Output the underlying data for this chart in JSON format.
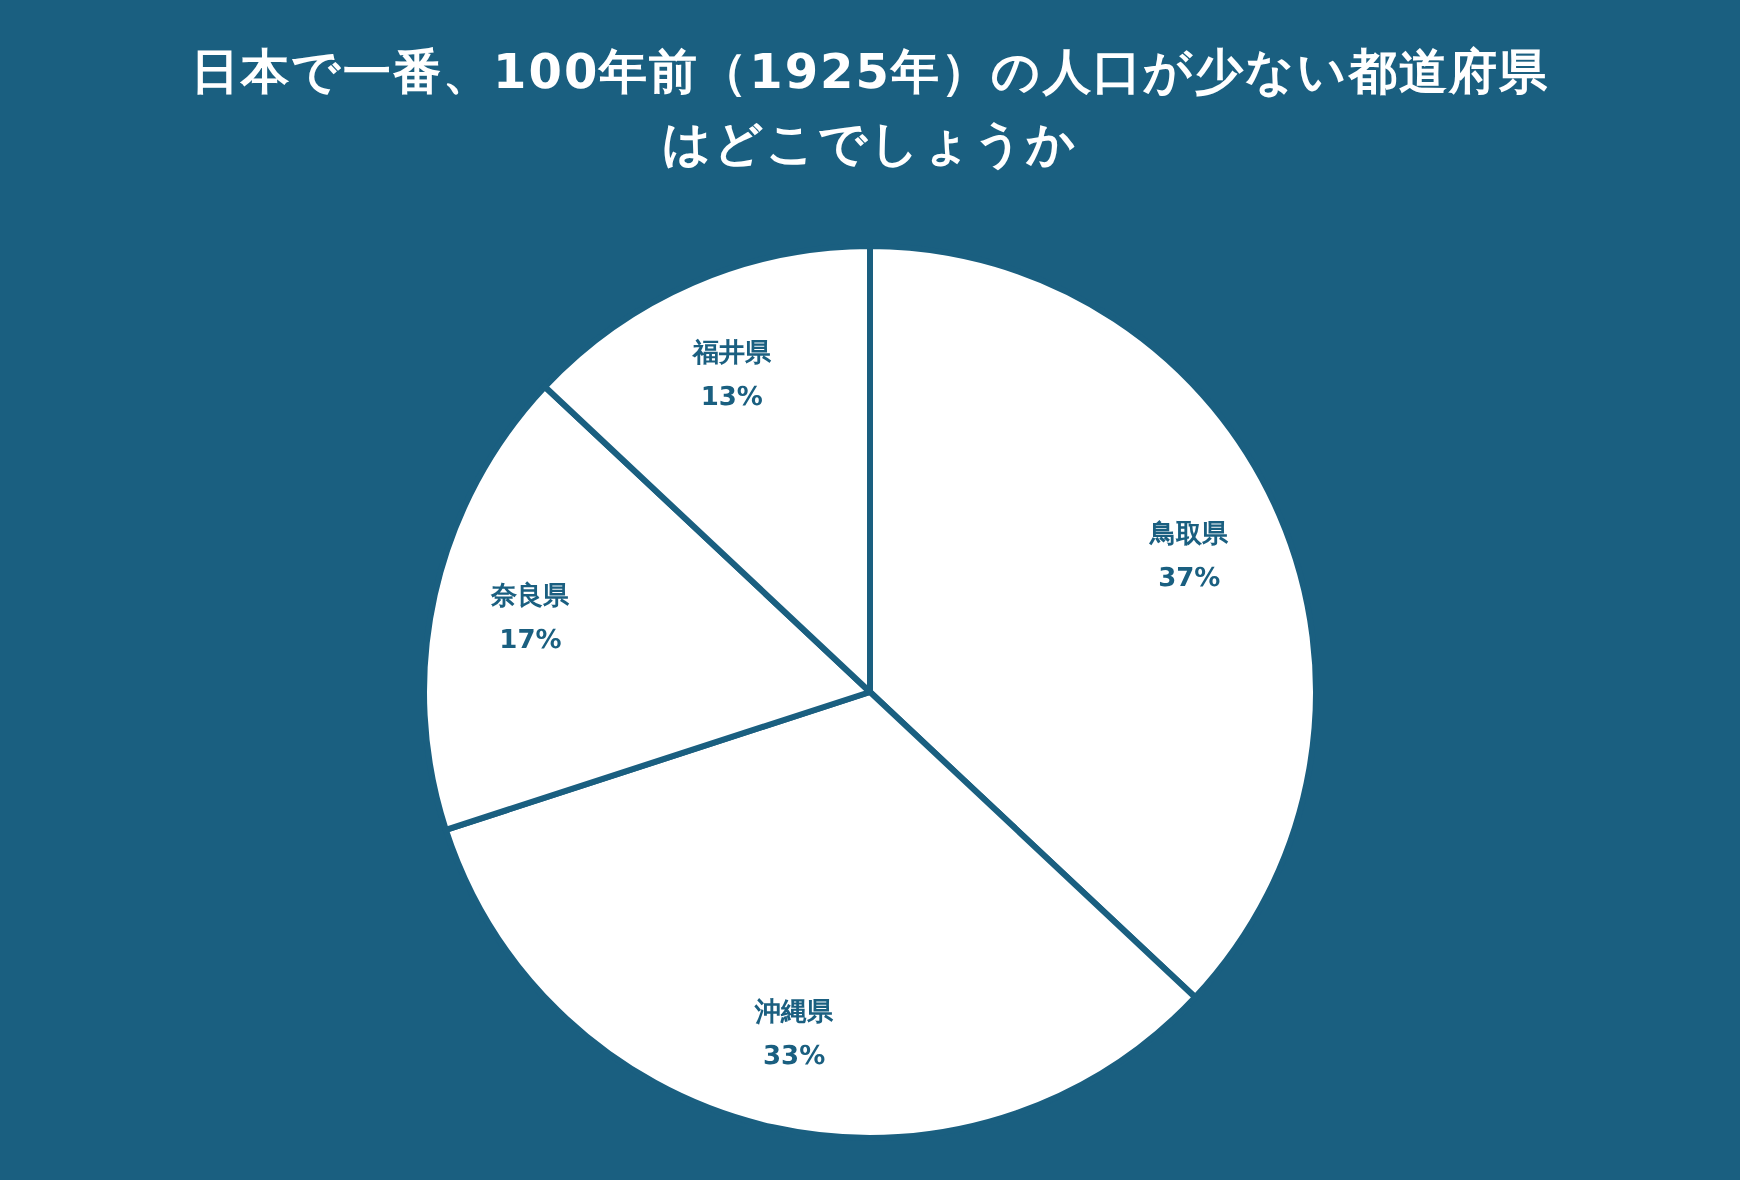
{
  "chart_data": {
    "type": "pie",
    "title": "日本で一番、100年前（1925年）の人口が少ない都道府県はどこでしょうか",
    "categories": [
      "鳥取県",
      "沖縄県",
      "奈良県",
      "福井県"
    ],
    "values": [
      37,
      33,
      17,
      13
    ],
    "value_labels": [
      "37%",
      "33%",
      "17%",
      "13%"
    ],
    "colors": [
      "#ffffff",
      "#ffffff",
      "#ffffff",
      "#ffffff"
    ]
  }
}
